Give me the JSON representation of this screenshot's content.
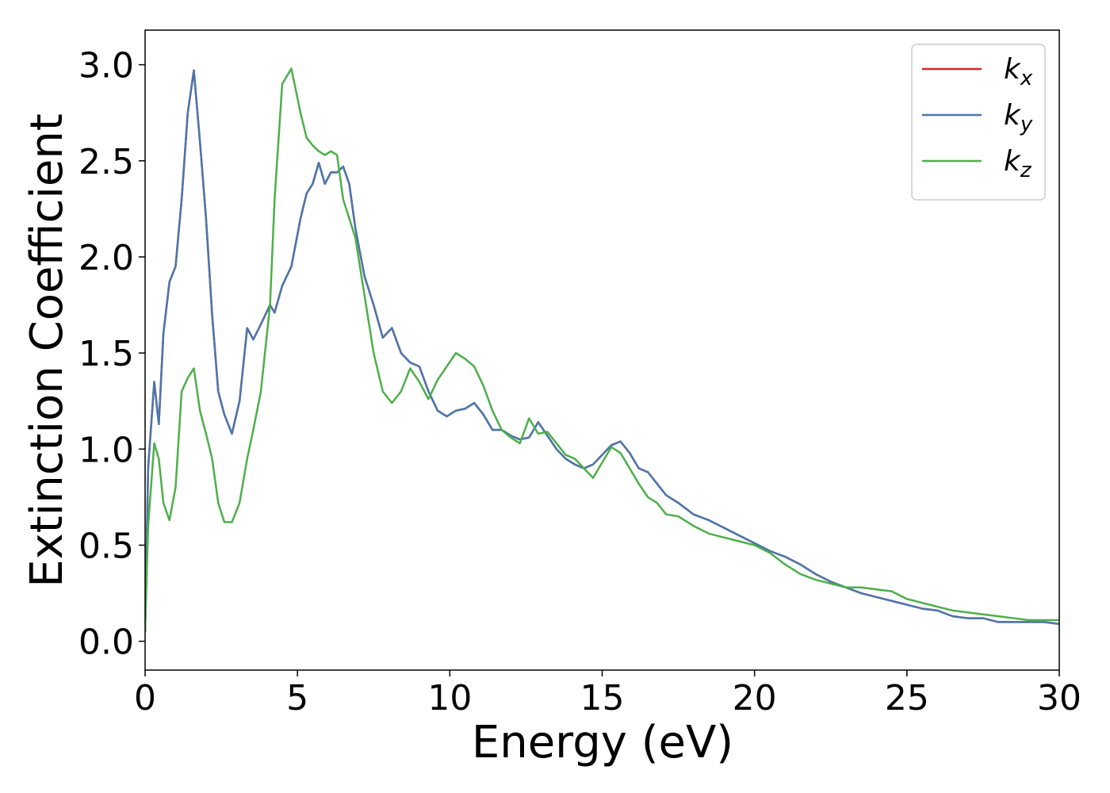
{
  "chart_data": {
    "type": "line",
    "xlabel": "Energy (eV)",
    "ylabel": "Extinction Coefficient",
    "xlim": [
      0,
      30
    ],
    "ylim": [
      -0.15,
      3.18
    ],
    "xticks": [
      0,
      5,
      10,
      15,
      20,
      25,
      30
    ],
    "yticks": [
      {
        "value": 0,
        "label": "0.0"
      },
      0.5,
      {
        "value": 1,
        "label": "1.0"
      },
      1.5,
      {
        "value": 2,
        "label": "2.0"
      },
      2.5,
      {
        "value": 3,
        "label": "3.0"
      }
    ],
    "legend": "upper right",
    "x": [
      0,
      0.1,
      0.3,
      0.45,
      0.6,
      0.8,
      1.0,
      1.2,
      1.4,
      1.6,
      1.8,
      2.0,
      2.2,
      2.4,
      2.6,
      2.85,
      3.1,
      3.35,
      3.55,
      3.8,
      4.1,
      4.25,
      4.5,
      4.8,
      5.1,
      5.3,
      5.5,
      5.7,
      5.9,
      6.1,
      6.3,
      6.5,
      6.7,
      6.9,
      7.2,
      7.5,
      7.8,
      8.1,
      8.4,
      8.7,
      9.0,
      9.3,
      9.6,
      9.9,
      10.2,
      10.5,
      10.8,
      11.1,
      11.4,
      11.7,
      12.0,
      12.3,
      12.6,
      12.9,
      13.2,
      13.5,
      13.8,
      14.1,
      14.4,
      14.7,
      15.0,
      15.3,
      15.6,
      15.9,
      16.2,
      16.5,
      16.8,
      17.1,
      17.5,
      18,
      18.5,
      19,
      19.5,
      20,
      20.5,
      21,
      21.5,
      22,
      22.5,
      23,
      23.5,
      24,
      24.5,
      25,
      25.5,
      26,
      26.5,
      27,
      27.5,
      28,
      28.5,
      29,
      29.5,
      30
    ],
    "series": [
      {
        "name": "kx",
        "color": "#d62728",
        "values": [
          0.05,
          0.9,
          1.35,
          1.13,
          1.6,
          1.87,
          1.95,
          2.3,
          2.75,
          2.97,
          2.6,
          2.2,
          1.7,
          1.3,
          1.18,
          1.08,
          1.25,
          1.63,
          1.57,
          1.65,
          1.75,
          1.71,
          1.85,
          1.95,
          2.2,
          2.33,
          2.38,
          2.49,
          2.38,
          2.44,
          2.44,
          2.47,
          2.38,
          2.15,
          1.9,
          1.75,
          1.58,
          1.63,
          1.5,
          1.45,
          1.43,
          1.3,
          1.2,
          1.17,
          1.2,
          1.21,
          1.24,
          1.18,
          1.1,
          1.1,
          1.07,
          1.05,
          1.06,
          1.14,
          1.07,
          1.0,
          0.95,
          0.92,
          0.9,
          0.92,
          0.97,
          1.02,
          1.04,
          0.98,
          0.9,
          0.88,
          0.82,
          0.76,
          0.72,
          0.66,
          0.63,
          0.59,
          0.55,
          0.51,
          0.47,
          0.44,
          0.4,
          0.35,
          0.31,
          0.28,
          0.25,
          0.23,
          0.21,
          0.19,
          0.17,
          0.16,
          0.13,
          0.12,
          0.12,
          0.1,
          0.1,
          0.1,
          0.1,
          0.09
        ]
      },
      {
        "name": "ky",
        "color": "#4a77ad",
        "values": [
          0.05,
          0.9,
          1.35,
          1.13,
          1.6,
          1.87,
          1.95,
          2.3,
          2.75,
          2.97,
          2.6,
          2.2,
          1.7,
          1.3,
          1.18,
          1.08,
          1.25,
          1.63,
          1.57,
          1.65,
          1.75,
          1.71,
          1.85,
          1.95,
          2.2,
          2.33,
          2.38,
          2.49,
          2.38,
          2.44,
          2.44,
          2.47,
          2.38,
          2.15,
          1.9,
          1.75,
          1.58,
          1.63,
          1.5,
          1.45,
          1.43,
          1.3,
          1.2,
          1.17,
          1.2,
          1.21,
          1.24,
          1.18,
          1.1,
          1.1,
          1.07,
          1.05,
          1.06,
          1.14,
          1.07,
          1.0,
          0.95,
          0.92,
          0.9,
          0.92,
          0.97,
          1.02,
          1.04,
          0.98,
          0.9,
          0.88,
          0.82,
          0.76,
          0.72,
          0.66,
          0.63,
          0.59,
          0.55,
          0.51,
          0.47,
          0.44,
          0.4,
          0.35,
          0.31,
          0.28,
          0.25,
          0.23,
          0.21,
          0.19,
          0.17,
          0.16,
          0.13,
          0.12,
          0.12,
          0.1,
          0.1,
          0.1,
          0.1,
          0.09
        ]
      },
      {
        "name": "kz",
        "color": "#4daf4a",
        "values": [
          0.05,
          0.6,
          1.03,
          0.95,
          0.72,
          0.63,
          0.8,
          1.3,
          1.37,
          1.42,
          1.2,
          1.08,
          0.95,
          0.72,
          0.62,
          0.62,
          0.72,
          0.95,
          1.1,
          1.3,
          1.75,
          2.3,
          2.9,
          2.98,
          2.75,
          2.62,
          2.58,
          2.55,
          2.53,
          2.55,
          2.53,
          2.3,
          2.2,
          2.1,
          1.8,
          1.5,
          1.3,
          1.24,
          1.3,
          1.42,
          1.35,
          1.26,
          1.36,
          1.43,
          1.5,
          1.47,
          1.43,
          1.33,
          1.2,
          1.1,
          1.06,
          1.03,
          1.16,
          1.08,
          1.09,
          1.03,
          0.97,
          0.95,
          0.9,
          0.85,
          0.93,
          1.01,
          0.98,
          0.9,
          0.82,
          0.75,
          0.72,
          0.66,
          0.65,
          0.6,
          0.56,
          0.54,
          0.52,
          0.5,
          0.46,
          0.4,
          0.35,
          0.32,
          0.3,
          0.28,
          0.28,
          0.27,
          0.26,
          0.22,
          0.2,
          0.18,
          0.16,
          0.15,
          0.14,
          0.13,
          0.12,
          0.11,
          0.11,
          0.11
        ]
      }
    ]
  }
}
